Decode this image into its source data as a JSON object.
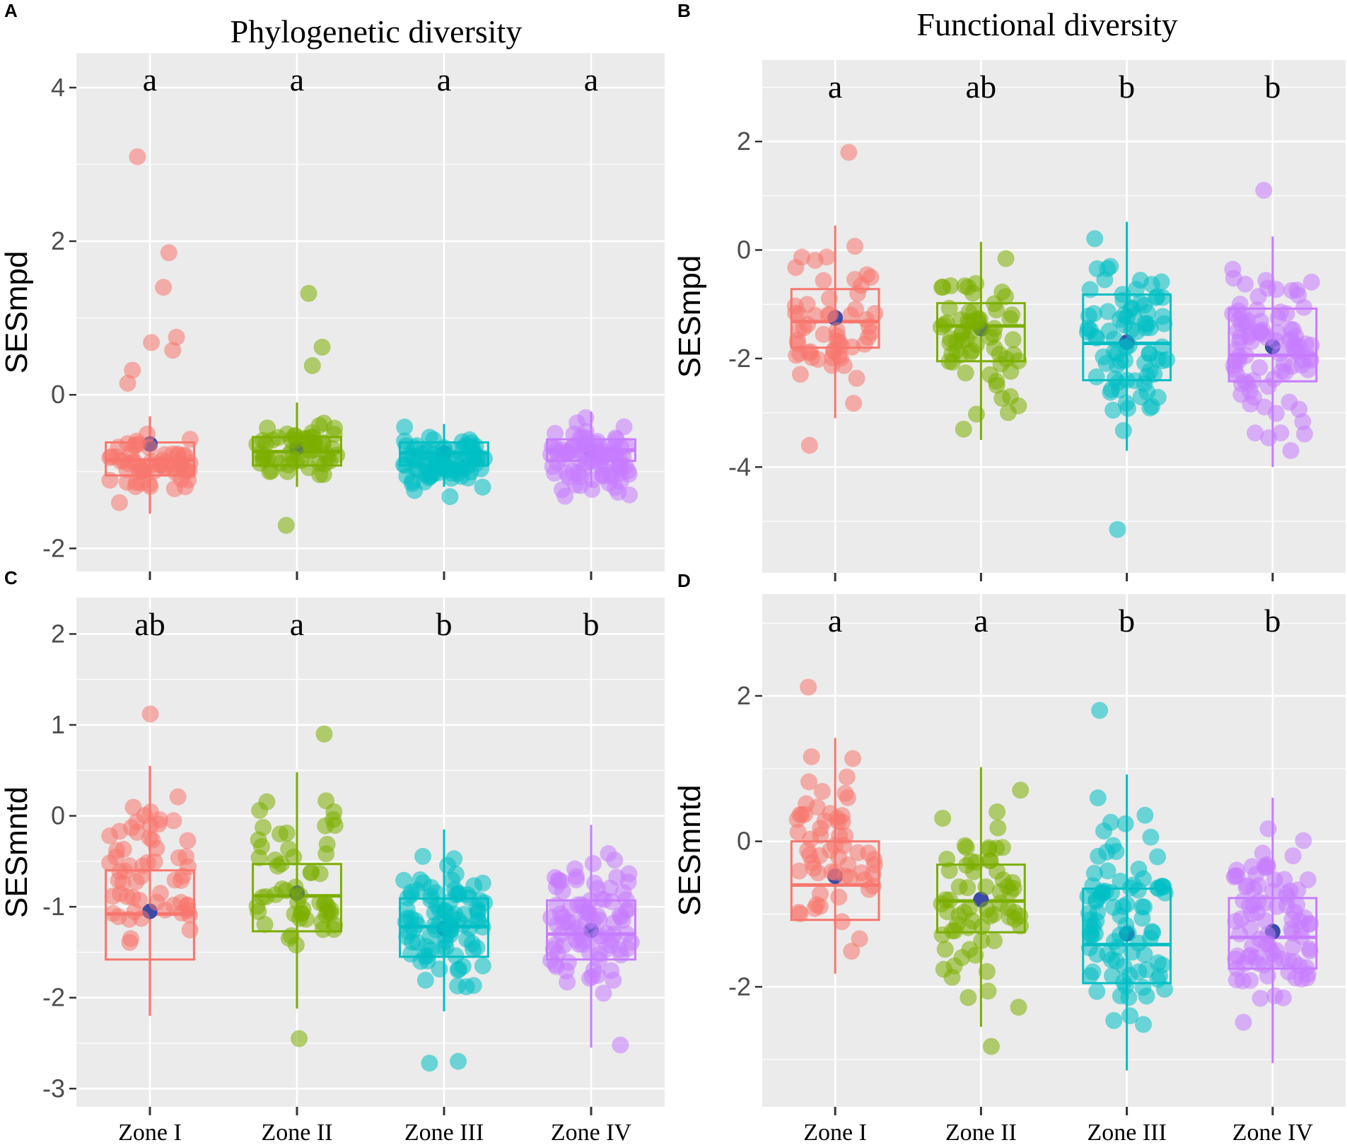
{
  "colors": {
    "zones": [
      "#F8766D",
      "#7CAE00",
      "#00BFC4",
      "#C77CFF"
    ],
    "mean": "#3B4BA6",
    "panel_bg": "#EBEBEB",
    "grid": "#FFFFFF"
  },
  "chart_data": [
    {
      "panel": "A",
      "type": "box",
      "title": "Phylogenetic diversity",
      "ylabel": "SESmpd",
      "xlabel": "",
      "categories": [
        "Zone I",
        "Zone II",
        "Zone III",
        "Zone IV"
      ],
      "show_x_labels": false,
      "ylim": [
        -2.3,
        4.45
      ],
      "yticks": [
        -2,
        0,
        2,
        4
      ],
      "tick_labels": [
        "-2",
        "0",
        "2",
        "4"
      ],
      "significance": [
        "a",
        "a",
        "a",
        "a"
      ],
      "boxes": [
        {
          "q1": -1.05,
          "median": -0.85,
          "q3": -0.62,
          "whisker_low": -1.55,
          "whisker_high": -0.28,
          "mean": -0.64
        },
        {
          "q1": -0.92,
          "median": -0.74,
          "q3": -0.55,
          "whisker_low": -1.2,
          "whisker_high": -0.1,
          "mean": -0.69
        },
        {
          "q1": -0.92,
          "median": -0.76,
          "q3": -0.62,
          "whisker_low": -1.2,
          "whisker_high": -0.38,
          "mean": -0.76
        },
        {
          "q1": -0.86,
          "median": -0.72,
          "q3": -0.58,
          "whisker_low": -1.2,
          "whisker_high": -0.22,
          "mean": -0.73
        }
      ],
      "points": [
        {
          "count": 60,
          "low": -1.55,
          "high": -0.3,
          "outliers": [
            3.1,
            1.85,
            1.4,
            0.75,
            0.68,
            0.58,
            0.32,
            0.15
          ]
        },
        {
          "count": 55,
          "low": -1.2,
          "high": -0.2,
          "outliers": [
            1.32,
            0.62,
            0.38,
            -1.7
          ]
        },
        {
          "count": 80,
          "low": -1.38,
          "high": -0.38,
          "outliers": []
        },
        {
          "count": 85,
          "low": -1.45,
          "high": -0.22,
          "outliers": []
        }
      ]
    },
    {
      "panel": "B",
      "type": "box",
      "title": "Functional diversity",
      "ylabel": "SESmpd",
      "xlabel": "",
      "categories": [
        "Zone I",
        "Zone II",
        "Zone III",
        "Zone IV"
      ],
      "show_x_labels": false,
      "ylim": [
        -5.95,
        3.5
      ],
      "yticks": [
        -4,
        -2,
        0,
        2
      ],
      "tick_labels": [
        "-4",
        "-2",
        "0",
        "2"
      ],
      "significance": [
        "a",
        "ab",
        "b",
        "b"
      ],
      "boxes": [
        {
          "q1": -1.8,
          "median": -1.32,
          "q3": -0.72,
          "whisker_low": -3.1,
          "whisker_high": 0.45,
          "mean": -1.25
        },
        {
          "q1": -2.05,
          "median": -1.4,
          "q3": -0.98,
          "whisker_low": -3.5,
          "whisker_high": 0.15,
          "mean": -1.45
        },
        {
          "q1": -2.4,
          "median": -1.72,
          "q3": -0.82,
          "whisker_low": -3.7,
          "whisker_high": 0.52,
          "mean": -1.7
        },
        {
          "q1": -2.42,
          "median": -1.94,
          "q3": -1.08,
          "whisker_low": -4.0,
          "whisker_high": 0.25,
          "mean": -1.78
        }
      ],
      "points": [
        {
          "count": 55,
          "low": -3.1,
          "high": 0.45,
          "outliers": [
            1.8,
            -3.6
          ]
        },
        {
          "count": 65,
          "low": -3.55,
          "high": 0.18,
          "outliers": []
        },
        {
          "count": 80,
          "low": -3.75,
          "high": 0.55,
          "outliers": [
            -5.15
          ]
        },
        {
          "count": 90,
          "low": -4.05,
          "high": 0.25,
          "outliers": [
            1.1
          ]
        }
      ]
    },
    {
      "panel": "C",
      "type": "box",
      "title": "",
      "ylabel": "SESmntd",
      "xlabel": "",
      "categories": [
        "Zone I",
        "Zone II",
        "Zone III",
        "Zone IV"
      ],
      "show_x_labels": true,
      "ylim": [
        -3.2,
        2.4
      ],
      "yticks": [
        -3,
        -2,
        -1,
        0,
        1,
        2
      ],
      "tick_labels": [
        "-3",
        "-2",
        "-1",
        "0",
        "1",
        "2"
      ],
      "significance": [
        "ab",
        "a",
        "b",
        "b"
      ],
      "boxes": [
        {
          "q1": -1.58,
          "median": -1.08,
          "q3": -0.6,
          "whisker_low": -2.2,
          "whisker_high": 0.55,
          "mean": -1.05
        },
        {
          "q1": -1.27,
          "median": -0.88,
          "q3": -0.53,
          "whisker_low": -2.12,
          "whisker_high": 0.48,
          "mean": -0.85
        },
        {
          "q1": -1.55,
          "median": -1.22,
          "q3": -0.91,
          "whisker_low": -2.15,
          "whisker_high": -0.15,
          "mean": -1.24
        },
        {
          "q1": -1.58,
          "median": -1.3,
          "q3": -0.93,
          "whisker_low": -2.55,
          "whisker_high": -0.1,
          "mean": -1.26
        }
      ],
      "points": [
        {
          "count": 60,
          "low": -2.2,
          "high": 0.6,
          "outliers": [
            1.12
          ]
        },
        {
          "count": 55,
          "low": -2.15,
          "high": 0.5,
          "outliers": [
            0.9,
            -2.45
          ]
        },
        {
          "count": 90,
          "low": -2.15,
          "high": -0.15,
          "outliers": [
            -2.7,
            -2.72
          ]
        },
        {
          "count": 90,
          "low": -2.3,
          "high": -0.1,
          "outliers": [
            -2.52
          ]
        }
      ]
    },
    {
      "panel": "D",
      "type": "box",
      "title": "",
      "ylabel": "SESmntd",
      "xlabel": "",
      "categories": [
        "Zone I",
        "Zone II",
        "Zone III",
        "Zone IV"
      ],
      "show_x_labels": true,
      "ylim": [
        -3.65,
        3.4
      ],
      "yticks": [
        -2,
        0,
        2
      ],
      "tick_labels": [
        "-2",
        "0",
        "2"
      ],
      "significance": [
        "a",
        "a",
        "b",
        "b"
      ],
      "boxes": [
        {
          "q1": -1.08,
          "median": -0.6,
          "q3": 0.0,
          "whisker_low": -1.82,
          "whisker_high": 1.42,
          "mean": -0.48
        },
        {
          "q1": -1.25,
          "median": -0.82,
          "q3": -0.32,
          "whisker_low": -2.55,
          "whisker_high": 1.02,
          "mean": -0.8
        },
        {
          "q1": -1.95,
          "median": -1.42,
          "q3": -0.65,
          "whisker_low": -3.15,
          "whisker_high": 0.92,
          "mean": -1.27
        },
        {
          "q1": -1.75,
          "median": -1.32,
          "q3": -0.78,
          "whisker_low": -3.05,
          "whisker_high": 0.6,
          "mean": -1.24
        }
      ],
      "points": [
        {
          "count": 60,
          "low": -1.85,
          "high": 1.45,
          "outliers": [
            2.12
          ]
        },
        {
          "count": 65,
          "low": -2.55,
          "high": 1.05,
          "outliers": [
            -2.82
          ]
        },
        {
          "count": 90,
          "low": -3.15,
          "high": 0.95,
          "outliers": [
            1.8
          ]
        },
        {
          "count": 90,
          "low": -3.02,
          "high": 0.7,
          "outliers": []
        }
      ]
    }
  ]
}
